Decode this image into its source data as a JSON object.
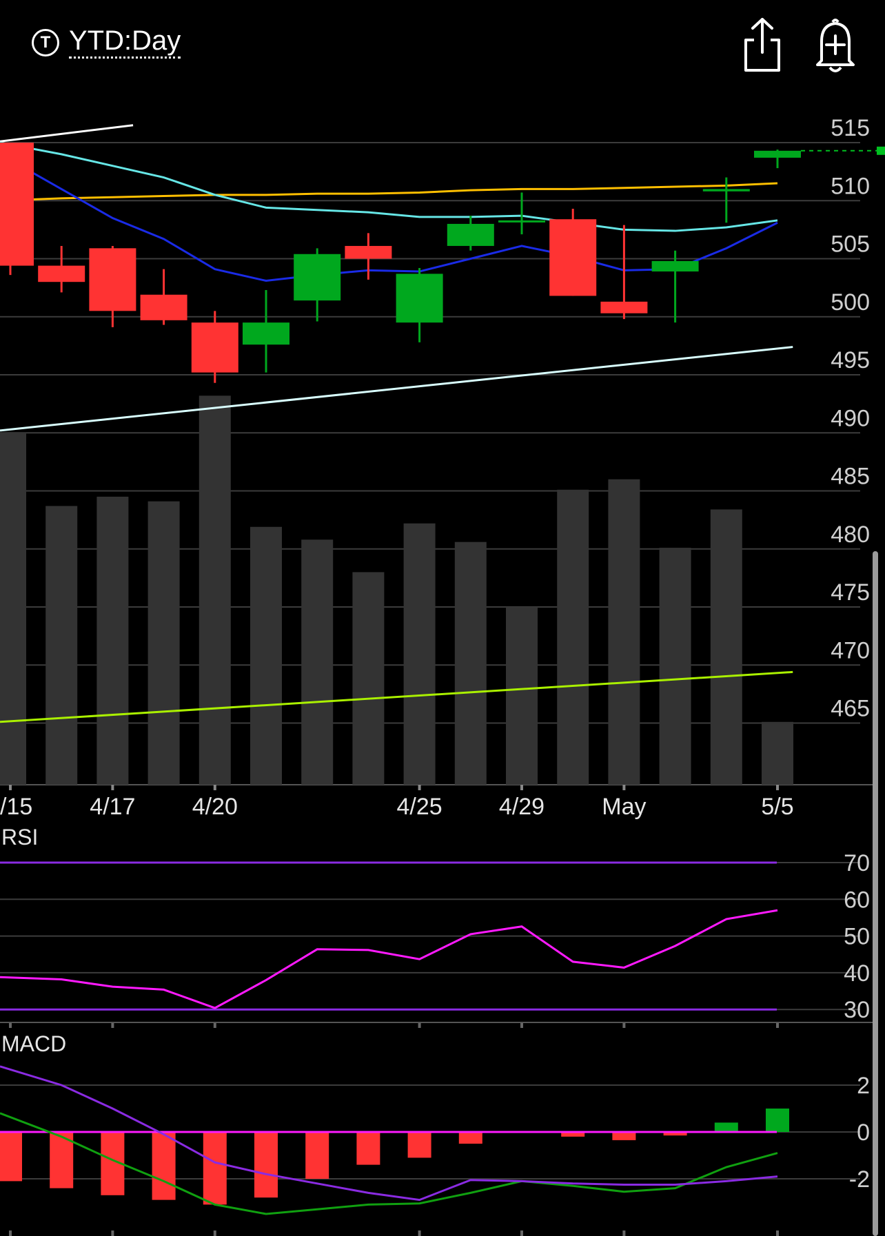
{
  "header": {
    "timeframe_icon": "T",
    "timeframe_label": "YTD:Day",
    "share_icon": "share-icon",
    "alert_icon": "bell-plus-icon"
  },
  "chart_data": {
    "type": "candlestick",
    "price_axis": {
      "ticks": [
        515,
        510,
        505,
        500,
        495,
        490,
        485,
        480,
        475,
        470,
        465
      ],
      "range": [
        460,
        516.5
      ]
    },
    "date_ticks": [
      {
        "label": "/15",
        "index": 0
      },
      {
        "label": "4/17",
        "index": 2
      },
      {
        "label": "4/20",
        "index": 4
      },
      {
        "label": "4/25",
        "index": 8
      },
      {
        "label": "4/29",
        "index": 10
      },
      {
        "label": "May",
        "index": 12
      },
      {
        "label": "5/5",
        "index": 15
      }
    ],
    "candles": [
      {
        "o": 515.0,
        "h": 515.0,
        "l": 503.6,
        "c": 504.4
      },
      {
        "o": 504.4,
        "h": 506.1,
        "l": 502.1,
        "c": 503.0
      },
      {
        "o": 505.9,
        "h": 506.1,
        "l": 499.1,
        "c": 500.5
      },
      {
        "o": 501.9,
        "h": 504.1,
        "l": 499.3,
        "c": 499.7
      },
      {
        "o": 499.5,
        "h": 500.5,
        "l": 494.3,
        "c": 495.2
      },
      {
        "o": 497.6,
        "h": 502.3,
        "l": 495.2,
        "c": 499.5
      },
      {
        "o": 501.4,
        "h": 505.9,
        "l": 499.6,
        "c": 505.4
      },
      {
        "o": 506.1,
        "h": 507.2,
        "l": 503.2,
        "c": 505.0
      },
      {
        "o": 499.5,
        "h": 504.2,
        "l": 497.8,
        "c": 503.7
      },
      {
        "o": 506.1,
        "h": 508.7,
        "l": 505.7,
        "c": 508.0
      },
      {
        "o": 508.3,
        "h": 510.7,
        "l": 507.1,
        "c": 508.3
      },
      {
        "o": 508.4,
        "h": 509.3,
        "l": 501.8,
        "c": 501.8
      },
      {
        "o": 501.3,
        "h": 507.9,
        "l": 499.8,
        "c": 500.3
      },
      {
        "o": 503.9,
        "h": 505.7,
        "l": 499.5,
        "c": 504.8
      },
      {
        "o": 510.8,
        "h": 512.0,
        "l": 508.1,
        "c": 511.0
      },
      {
        "o": 513.7,
        "h": 514.4,
        "l": 512.8,
        "c": 514.3
      }
    ],
    "last_price": 514.3,
    "moving_averages": [
      {
        "color": "#ffbf00",
        "values": [
          510.0,
          510.2,
          510.3,
          510.4,
          510.5,
          510.5,
          510.6,
          510.6,
          510.7,
          510.9,
          511.0,
          511.0,
          511.1,
          511.2,
          511.3,
          511.5
        ]
      },
      {
        "color": "#66e6e6",
        "values": [
          515.0,
          514.0,
          513.0,
          512.0,
          510.5,
          509.4,
          509.2,
          509.0,
          508.6,
          508.6,
          508.7,
          508.1,
          507.5,
          507.4,
          507.7,
          508.3
        ]
      },
      {
        "color": "#1a2be6",
        "values": [
          514.0,
          511.0,
          508.5,
          506.7,
          504.1,
          503.1,
          503.6,
          504.0,
          503.9,
          505.0,
          506.1,
          505.2,
          504.0,
          504.1,
          505.9,
          508.1
        ]
      }
    ],
    "trend_lines": [
      {
        "color": "#ffffff",
        "points": [
          [
            0,
            515.1
          ],
          [
            2.4,
            516.5
          ]
        ]
      },
      {
        "color": "#d9ffff",
        "points": [
          [
            0,
            490.2
          ],
          [
            15.3,
            497.4
          ]
        ]
      },
      {
        "color": "#aaf000",
        "points": [
          [
            0,
            465.1
          ],
          [
            15.3,
            469.4
          ]
        ]
      }
    ],
    "volume": [
      490.0,
      483.7,
      484.5,
      484.1,
      493.2,
      481.9,
      480.8,
      478.0,
      482.2,
      480.6,
      475.0,
      485.1,
      486.0,
      480.1,
      483.4,
      465.1
    ],
    "rsi": {
      "label": "RSI",
      "ticks": [
        70,
        60,
        50,
        40,
        30
      ],
      "levels": {
        "upper": 70,
        "lower": 30
      },
      "values": [
        38.8,
        38.2,
        36.2,
        35.4,
        30.4,
        38.0,
        46.4,
        46.2,
        43.7,
        50.5,
        52.6,
        43.0,
        41.4,
        47.3,
        54.6,
        57.0
      ]
    },
    "macd": {
      "label": "MACD",
      "ticks": [
        2,
        0,
        -2
      ],
      "histogram": [
        -2.1,
        -2.4,
        -2.7,
        -2.9,
        -3.1,
        -2.8,
        -2.0,
        -1.4,
        -1.1,
        -0.5,
        0.0,
        -0.2,
        -0.35,
        -0.15,
        0.4,
        1.0
      ],
      "macd_line": [
        0.8,
        -0.2,
        -1.2,
        -2.1,
        -3.1,
        -3.5,
        -3.3,
        -3.1,
        -3.05,
        -2.6,
        -2.1,
        -2.3,
        -2.55,
        -2.4,
        -1.5,
        -0.9
      ],
      "signal_line": [
        2.8,
        2.0,
        1.0,
        -0.1,
        -1.3,
        -1.8,
        -2.2,
        -2.6,
        -2.9,
        -2.05,
        -2.1,
        -2.2,
        -2.25,
        -2.25,
        -2.1,
        -1.9
      ]
    }
  }
}
